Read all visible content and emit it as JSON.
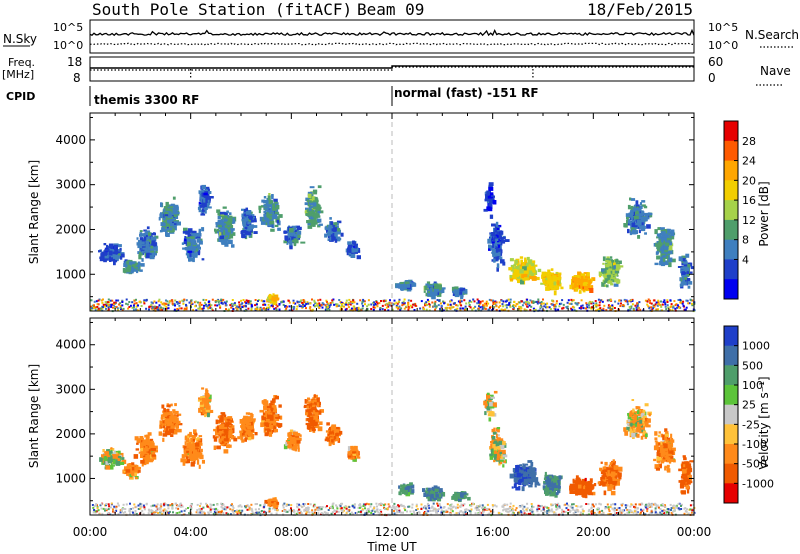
{
  "header": {
    "station": "South Pole Station (fitACF)",
    "beam": "Beam 09",
    "date": "18/Feb/2015"
  },
  "top_panels": {
    "nsky_label": "N.Sky",
    "nsky_ticks": [
      "10^5",
      "10^0"
    ],
    "nsearch_label": "N.Search",
    "nsearch_ticks": [
      "10^5",
      "10^0"
    ],
    "freq_label_1": "Freq.",
    "freq_label_2": "[MHz]",
    "freq_ticks": [
      "18",
      "8"
    ],
    "nave_label": "Nave",
    "nave_ticks": [
      "60",
      "0"
    ],
    "cpid_label": "CPID",
    "cpid_segments": [
      {
        "label": "themis 3300 RF",
        "start_hour": 0
      },
      {
        "label": "normal (fast) -151 RF",
        "start_hour": 12
      }
    ]
  },
  "chart_data": [
    {
      "type": "heatmap",
      "name": "power",
      "ylabel": "Slant Range [km]",
      "x_range_hours": [
        0,
        24
      ],
      "ylim": [
        180,
        4600
      ],
      "yticks": [
        1000,
        2000,
        3000,
        4000
      ],
      "colorbar": {
        "label": "Power [dB]",
        "ticks": [
          "28",
          "24",
          "20",
          "16",
          "12",
          "8",
          "4"
        ],
        "colors": [
          "#e60000",
          "#ff5a00",
          "#ffa600",
          "#f2ce00",
          "#a6d24a",
          "#4f9e6b",
          "#3f7fbf",
          "#1f3fc9",
          "#0000f0"
        ]
      }
    },
    {
      "type": "heatmap",
      "name": "velocity",
      "ylabel": "Slant Range [km]",
      "x_range_hours": [
        0,
        24
      ],
      "ylim": [
        180,
        4600
      ],
      "yticks": [
        1000,
        2000,
        3000,
        4000
      ],
      "xlabel": "Time UT",
      "xticks": [
        "00:00",
        "04:00",
        "08:00",
        "12:00",
        "16:00",
        "20:00",
        "00:00"
      ],
      "colorbar": {
        "label": "Velocity [m s⁻¹]",
        "ticks": [
          "1000",
          "500",
          "100",
          "25",
          "-25",
          "-100",
          "-500",
          "-1000"
        ],
        "colors": [
          "#1f3fc9",
          "#3f6fa8",
          "#4f9e6b",
          "#5cc43a",
          "#c8c8c8",
          "#ffc23a",
          "#ff8a1a",
          "#f05a00",
          "#e60000"
        ]
      }
    }
  ]
}
